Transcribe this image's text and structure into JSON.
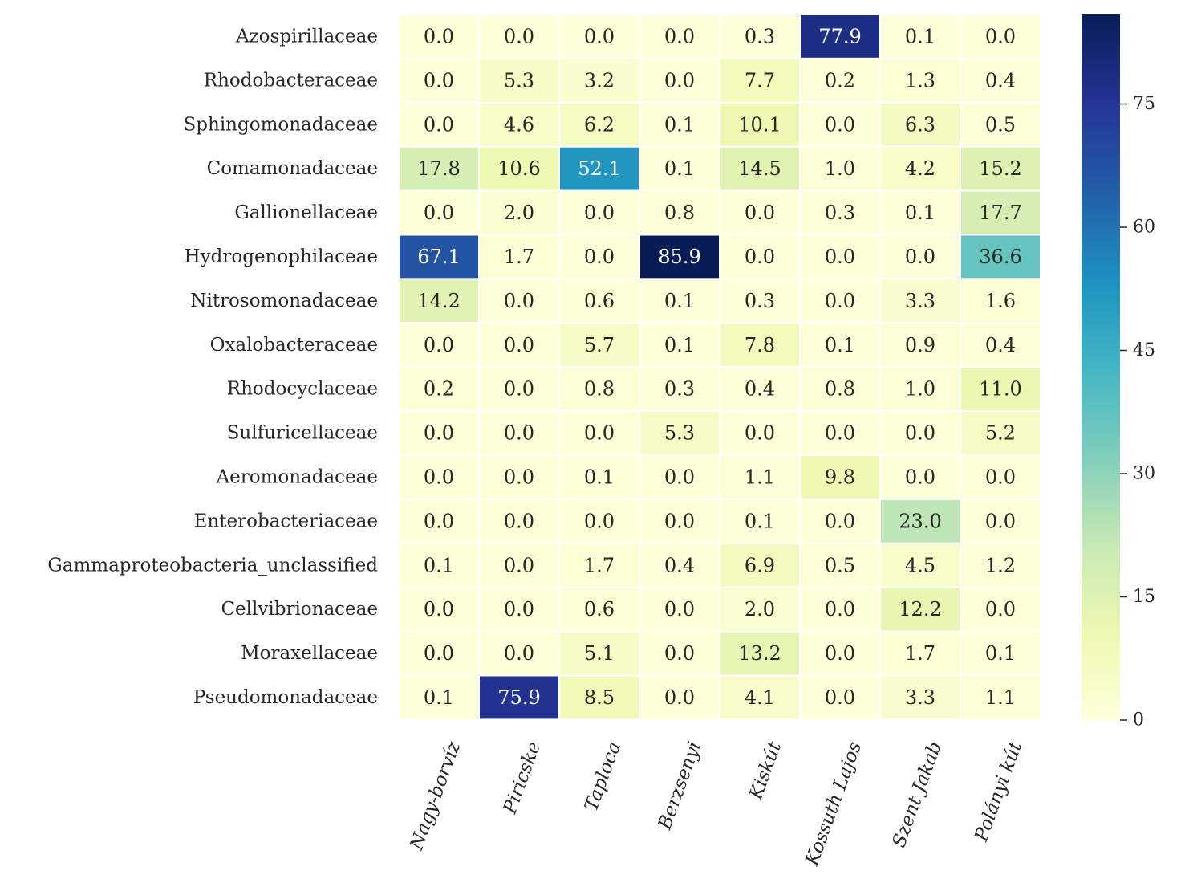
{
  "chart_data": {
    "type": "heatmap",
    "title": "",
    "xlabel": "",
    "ylabel": "",
    "rows": [
      "Azospirillaceae",
      "Rhodobacteraceae",
      "Sphingomonadaceae",
      "Comamonadaceae",
      "Gallionellaceae",
      "Hydrogenophilaceae",
      "Nitrosomonadaceae",
      "Oxalobacteraceae",
      "Rhodocyclaceae",
      "Sulfuricellaceae",
      "Aeromonadaceae",
      "Enterobacteriaceae",
      "Gammaproteobacteria_unclassified",
      "Cellvibrionaceae",
      "Moraxellaceae",
      "Pseudomonadaceae"
    ],
    "columns": [
      "Nagy-borvíz",
      "Piricske",
      "Taploca",
      "Berzsenyi",
      "Kiskút",
      "Kossuth Lajos",
      "Szent Jakab",
      "Polányi kút"
    ],
    "values": [
      [
        "0.0",
        "0.0",
        "0.0",
        "0.0",
        "0.3",
        "77.9",
        "0.1",
        "0.0"
      ],
      [
        "0.0",
        "5.3",
        "3.2",
        "0.0",
        "7.7",
        "0.2",
        "1.3",
        "0.4"
      ],
      [
        "0.0",
        "4.6",
        "6.2",
        "0.1",
        "10.1",
        "0.0",
        "6.3",
        "0.5"
      ],
      [
        "17.8",
        "10.6",
        "52.1",
        "0.1",
        "14.5",
        "1.0",
        "4.2",
        "15.2"
      ],
      [
        "0.0",
        "2.0",
        "0.0",
        "0.8",
        "0.0",
        "0.3",
        "0.1",
        "17.7"
      ],
      [
        "67.1",
        "1.7",
        "0.0",
        "85.9",
        "0.0",
        "0.0",
        "0.0",
        "36.6"
      ],
      [
        "14.2",
        "0.0",
        "0.6",
        "0.1",
        "0.3",
        "0.0",
        "3.3",
        "1.6"
      ],
      [
        "0.0",
        "0.0",
        "5.7",
        "0.1",
        "7.8",
        "0.1",
        "0.9",
        "0.4"
      ],
      [
        "0.2",
        "0.0",
        "0.8",
        "0.3",
        "0.4",
        "0.8",
        "1.0",
        "11.0"
      ],
      [
        "0.0",
        "0.0",
        "0.0",
        "5.3",
        "0.0",
        "0.0",
        "0.0",
        "5.2"
      ],
      [
        "0.0",
        "0.0",
        "0.1",
        "0.0",
        "1.1",
        "9.8",
        "0.0",
        "0.0"
      ],
      [
        "0.0",
        "0.0",
        "0.0",
        "0.0",
        "0.1",
        "0.0",
        "23.0",
        "0.0"
      ],
      [
        "0.1",
        "0.0",
        "1.7",
        "0.4",
        "6.9",
        "0.5",
        "4.5",
        "1.2"
      ],
      [
        "0.0",
        "0.0",
        "0.6",
        "0.0",
        "2.0",
        "0.0",
        "12.2",
        "0.0"
      ],
      [
        "0.0",
        "0.0",
        "5.1",
        "0.0",
        "13.2",
        "0.0",
        "1.7",
        "0.1"
      ],
      [
        "0.1",
        "75.9",
        "8.5",
        "0.0",
        "4.1",
        "0.0",
        "3.3",
        "1.1"
      ]
    ],
    "colorscale": "YlGnBu",
    "colorbar": {
      "range": [
        0,
        85.9
      ],
      "ticks": [
        0,
        15,
        30,
        45,
        60,
        75
      ],
      "tick_labels": [
        "0",
        "15",
        "30",
        "45",
        "60",
        "75"
      ]
    },
    "colors": {
      "scale_stops": [
        "#ffffd9",
        "#edf8b1",
        "#c7e9b4",
        "#7fcdbb",
        "#41b6c4",
        "#1d91c0",
        "#225ea8",
        "#253494",
        "#081d58"
      ],
      "dark_text": "#262626",
      "light_text": "#ffffff",
      "cell_border": "#ffffff"
    },
    "grid": false
  }
}
